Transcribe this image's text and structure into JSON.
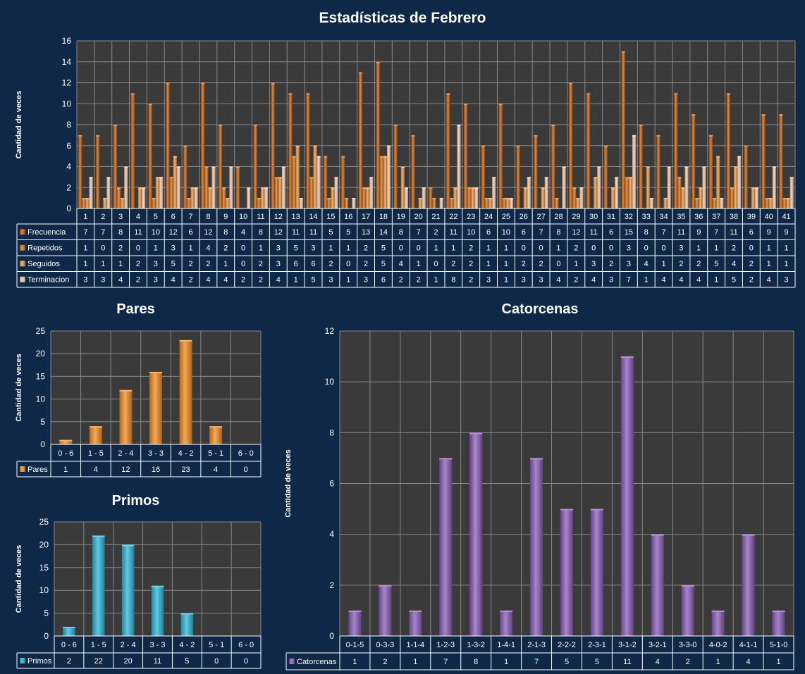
{
  "colors": {
    "background": "#0f2847",
    "plot_bg": "#3a3a3a",
    "grid": "#888888",
    "frecuencia": "#c8600f",
    "repetidos": "#d8761f",
    "seguidos": "#ec9a48",
    "terminacion": "#f3c9b0",
    "pares": "#f08c22",
    "primos": "#2bb5d6",
    "catorcenas": "#8a5cb8"
  },
  "chart_data": [
    {
      "id": "main",
      "type": "bar",
      "title": "Estadísticas de Febrero",
      "ylabel": "Cantidad de veces",
      "ylim": [
        0,
        16
      ],
      "yticks": [
        "0",
        "2",
        "4",
        "6",
        "8",
        "10",
        "12",
        "14",
        "16"
      ],
      "categories": [
        "1",
        "2",
        "3",
        "4",
        "5",
        "6",
        "7",
        "8",
        "9",
        "10",
        "11",
        "12",
        "13",
        "14",
        "15",
        "16",
        "17",
        "18",
        "19",
        "20",
        "21",
        "22",
        "23",
        "24",
        "25",
        "26",
        "27",
        "28",
        "29",
        "30",
        "31",
        "32",
        "33",
        "34",
        "35",
        "36",
        "37",
        "38",
        "39",
        "40",
        "41"
      ],
      "series": [
        {
          "name": "Frecuencia",
          "values": [
            7,
            7,
            8,
            11,
            10,
            12,
            6,
            12,
            8,
            4,
            8,
            12,
            11,
            11,
            5,
            5,
            13,
            14,
            8,
            7,
            2,
            11,
            10,
            6,
            10,
            6,
            7,
            8,
            12,
            11,
            6,
            15,
            8,
            7,
            11,
            9,
            7,
            11,
            6,
            9,
            9
          ]
        },
        {
          "name": "Repetidos",
          "values": [
            1,
            0,
            2,
            0,
            1,
            3,
            1,
            4,
            2,
            0,
            1,
            3,
            5,
            3,
            1,
            1,
            2,
            5,
            0,
            0,
            1,
            1,
            2,
            1,
            1,
            0,
            0,
            1,
            2,
            0,
            0,
            3,
            0,
            0,
            3,
            1,
            1,
            2,
            0,
            1,
            1
          ]
        },
        {
          "name": "Seguidos",
          "values": [
            1,
            1,
            1,
            2,
            3,
            5,
            2,
            2,
            1,
            0,
            2,
            3,
            6,
            6,
            2,
            0,
            2,
            5,
            4,
            1,
            0,
            2,
            2,
            1,
            1,
            2,
            2,
            0,
            1,
            3,
            2,
            3,
            4,
            1,
            2,
            2,
            5,
            4,
            2,
            1,
            1
          ]
        },
        {
          "name": "Terminacion",
          "values": [
            3,
            3,
            4,
            2,
            3,
            4,
            2,
            4,
            4,
            2,
            2,
            4,
            1,
            5,
            3,
            1,
            3,
            6,
            2,
            2,
            1,
            8,
            2,
            3,
            1,
            3,
            3,
            4,
            2,
            4,
            3,
            7,
            1,
            4,
            4,
            4,
            1,
            5,
            2,
            4,
            3
          ]
        }
      ],
      "grid": true,
      "legend": "table"
    },
    {
      "id": "pares",
      "type": "bar",
      "title": "Pares",
      "ylabel": "Cantidad de veces",
      "ylim": [
        0,
        25
      ],
      "yticks": [
        "0",
        "5",
        "10",
        "15",
        "20",
        "25"
      ],
      "categories": [
        "0 - 6",
        "1 - 5",
        "2 - 4",
        "3 - 3",
        "4 - 2",
        "5 - 1",
        "6 - 0"
      ],
      "series": [
        {
          "name": "Pares",
          "values": [
            1,
            4,
            12,
            16,
            23,
            4,
            0
          ]
        }
      ],
      "grid": true,
      "legend": "table"
    },
    {
      "id": "primos",
      "type": "bar",
      "title": "Primos",
      "ylabel": "Cantidad de veces",
      "ylim": [
        0,
        25
      ],
      "yticks": [
        "0",
        "5",
        "10",
        "15",
        "20",
        "25"
      ],
      "categories": [
        "0 - 6",
        "1 - 5",
        "2 - 4",
        "3 - 3",
        "4 - 2",
        "5 - 1",
        "6 - 0"
      ],
      "series": [
        {
          "name": "Primos",
          "values": [
            2,
            22,
            20,
            11,
            5,
            0,
            0
          ]
        }
      ],
      "grid": true,
      "legend": "table"
    },
    {
      "id": "catorcenas",
      "type": "bar",
      "title": "Catorcenas",
      "ylabel": "Cantidad de veces",
      "ylim": [
        0,
        12
      ],
      "yticks": [
        "0",
        "2",
        "4",
        "6",
        "8",
        "10",
        "12"
      ],
      "categories": [
        "0-1-5",
        "0-3-3",
        "1-1-4",
        "1-2-3",
        "1-3-2",
        "1-4-1",
        "2-1-3",
        "2-2-2",
        "2-3-1",
        "3-1-2",
        "3-2-1",
        "3-3-0",
        "4-0-2",
        "4-1-1",
        "5-1-0"
      ],
      "series": [
        {
          "name": "Catorcenas",
          "values": [
            1,
            2,
            1,
            7,
            8,
            1,
            7,
            5,
            5,
            11,
            4,
            2,
            1,
            4,
            1
          ]
        }
      ],
      "grid": true,
      "legend": "table"
    }
  ]
}
